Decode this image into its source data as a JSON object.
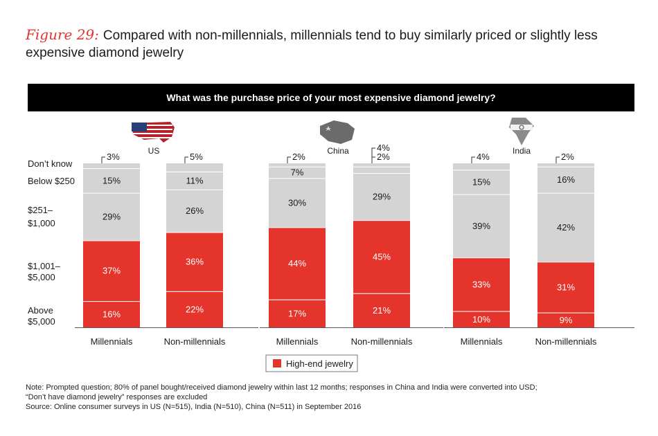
{
  "header": {
    "figure_label": "Figure 29:",
    "title": "Compared with non-millennials, millennials tend to buy similarly priced or slightly less expensive diamond jewelry"
  },
  "question": "What was the purchase price of your most expensive diamond jewelry?",
  "colors": {
    "high_end": "#e5342b",
    "other": "#d4d4d4",
    "text": "#1a1a1a"
  },
  "chart_data": {
    "type": "bar",
    "stacked": true,
    "category_labels": [
      "Don’t know",
      "Below $250",
      "$251–$1,000",
      "$1,001–$5,000",
      "Above $5,000"
    ],
    "category_label_lines": [
      [
        "Don’t know"
      ],
      [
        "Below $250"
      ],
      [
        "$251–",
        "$1,000"
      ],
      [
        "$1,001–",
        "$5,000"
      ],
      [
        "Above",
        "$5,000"
      ]
    ],
    "ylim": [
      0,
      100
    ],
    "legend": {
      "label": "High-end jewelry",
      "position": "bottom-center"
    },
    "panels": [
      {
        "country": "US",
        "flag_icon": "us-flag-map-icon",
        "bars": [
          {
            "label": "Millennials",
            "values": [
              3,
              15,
              29,
              37,
              16
            ]
          },
          {
            "label": "Non-millennials",
            "values": [
              5,
              11,
              26,
              36,
              22
            ]
          }
        ]
      },
      {
        "country": "China",
        "flag_icon": "china-flag-map-icon",
        "bars": [
          {
            "label": "Millennials",
            "values": [
              2,
              7,
              30,
              44,
              17
            ]
          },
          {
            "label": "Non-millennials",
            "values": [
              2,
              4,
              29,
              45,
              21
            ]
          }
        ]
      },
      {
        "country": "India",
        "flag_icon": "india-flag-map-icon",
        "bars": [
          {
            "label": "Millennials",
            "values": [
              4,
              15,
              39,
              33,
              10
            ]
          },
          {
            "label": "Non-millennials",
            "values": [
              2,
              16,
              42,
              31,
              9
            ]
          }
        ]
      }
    ],
    "high_end_categories": [
      3,
      4
    ]
  },
  "notes": {
    "line1": "Note: Prompted question; 80% of panel bought/received diamond jewelry within last 12 months; responses in China and India were converted into USD;",
    "line2": "“Don’t have diamond jewelry” responses are excluded",
    "source": "Source: Online consumer surveys in US (N=515), India (N=510), China (N=511) in September 2016"
  }
}
